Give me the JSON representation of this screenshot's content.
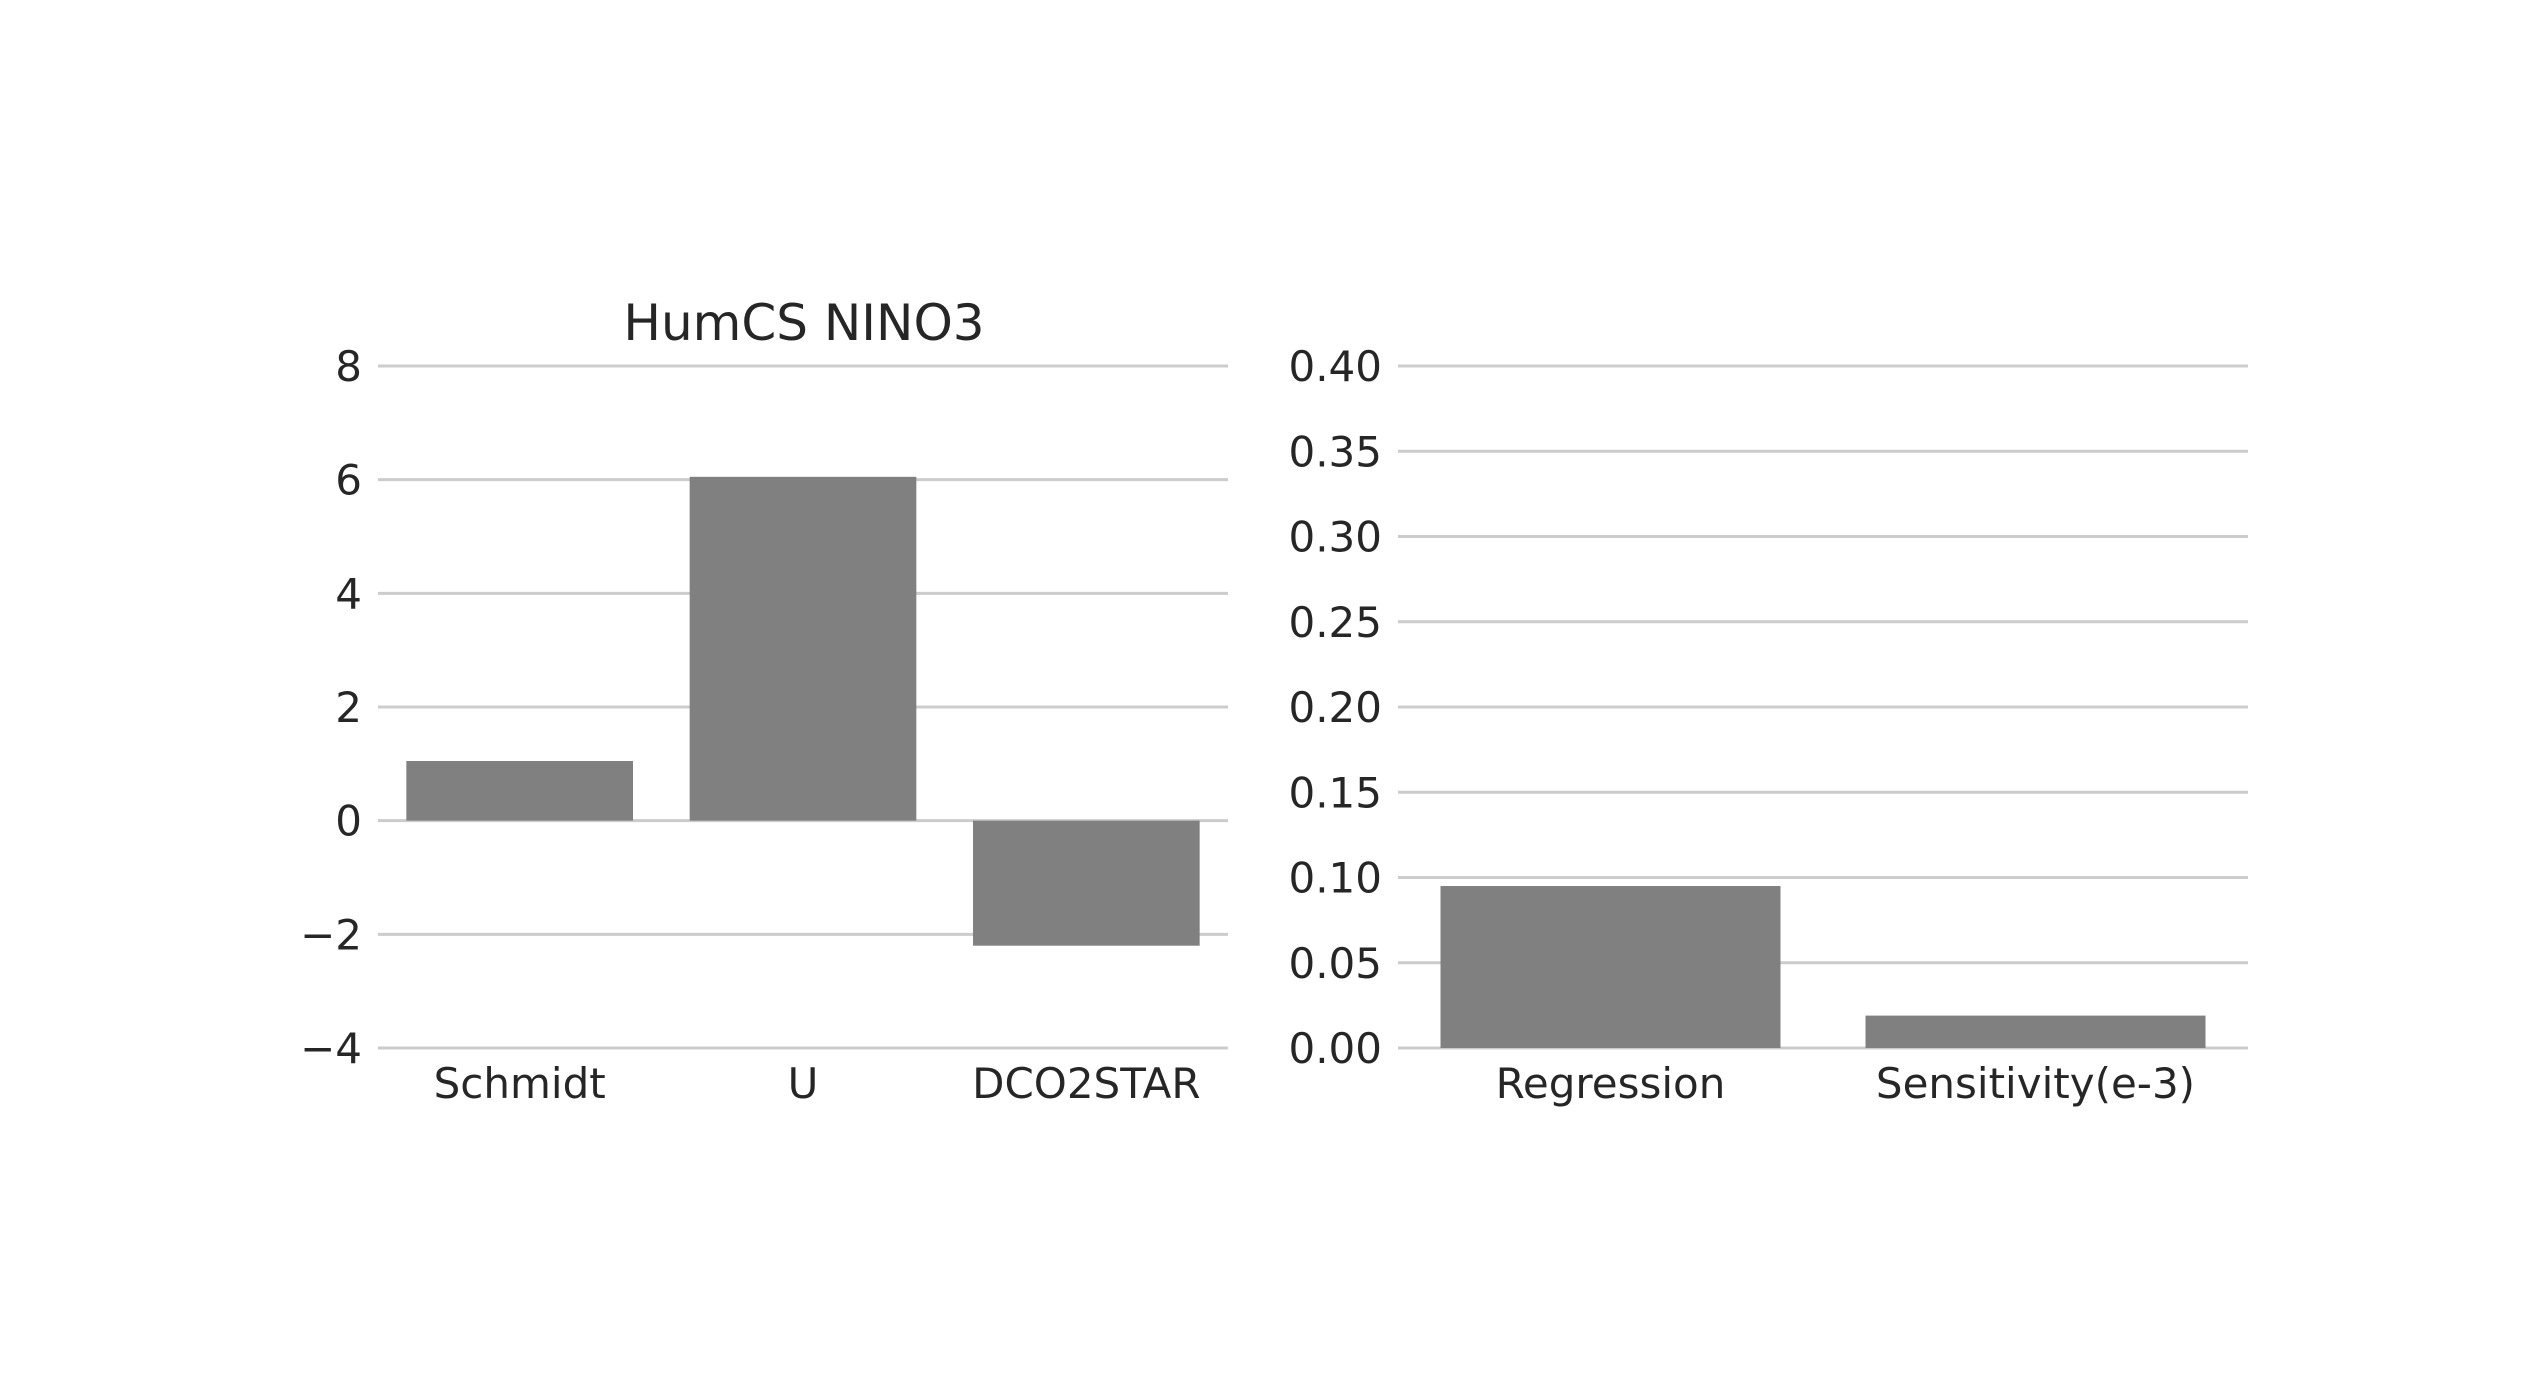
{
  "colors": {
    "bar": "#808080",
    "grid": "#cccccc",
    "text": "#262626",
    "background": "#ffffff"
  },
  "chart_data": [
    {
      "type": "bar",
      "title": "HumCS NINO3",
      "xlabel": "",
      "ylabel": "",
      "categories": [
        "Schmidt",
        "U",
        "DCO2STAR"
      ],
      "values": [
        1.05,
        6.05,
        -2.2
      ],
      "ylim": [
        -4,
        8
      ],
      "yticks": [
        -4,
        -2,
        0,
        2,
        4,
        6,
        8
      ],
      "ytick_labels": [
        "−4",
        "−2",
        "0",
        "2",
        "4",
        "6",
        "8"
      ],
      "grid": true,
      "legend": "none"
    },
    {
      "type": "bar",
      "title": "",
      "xlabel": "",
      "ylabel": "",
      "categories": [
        "Regression",
        "Sensitivity(e-3)"
      ],
      "values": [
        0.095,
        0.019
      ],
      "ylim": [
        0,
        0.4
      ],
      "yticks": [
        0,
        0.05,
        0.1,
        0.15,
        0.2,
        0.25,
        0.3,
        0.35,
        0.4
      ],
      "ytick_labels": [
        "0.00",
        "0.05",
        "0.10",
        "0.15",
        "0.20",
        "0.25",
        "0.30",
        "0.35",
        "0.40"
      ],
      "grid": true,
      "legend": "none"
    }
  ]
}
